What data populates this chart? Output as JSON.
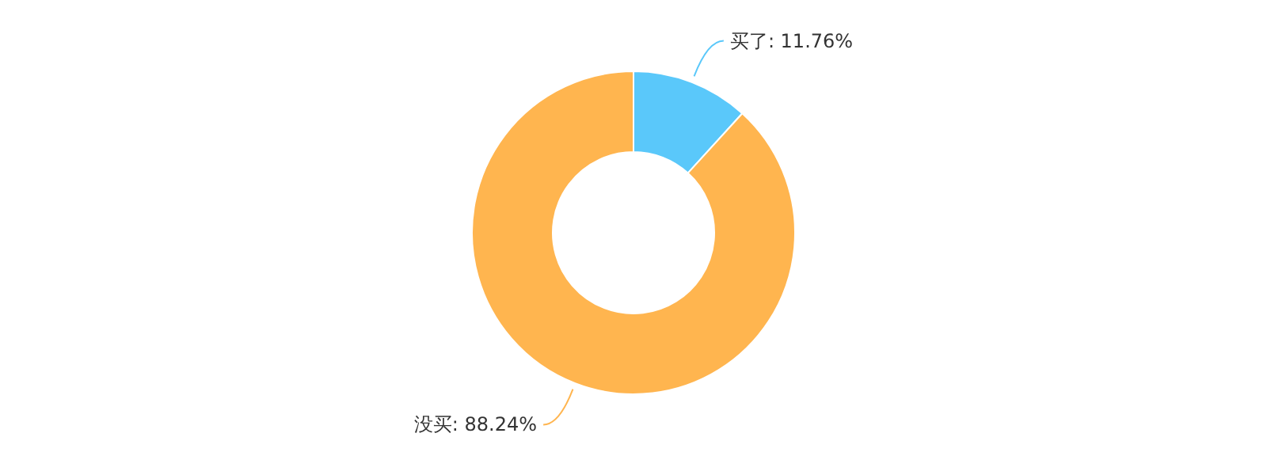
{
  "chart_data": {
    "type": "donut",
    "categories": [
      "买了",
      "没买"
    ],
    "values": [
      11.76,
      88.24
    ],
    "colors": [
      "#5ac8fa",
      "#ffb54f"
    ],
    "value_labels": [
      "11.76%",
      "88.24%"
    ]
  }
}
